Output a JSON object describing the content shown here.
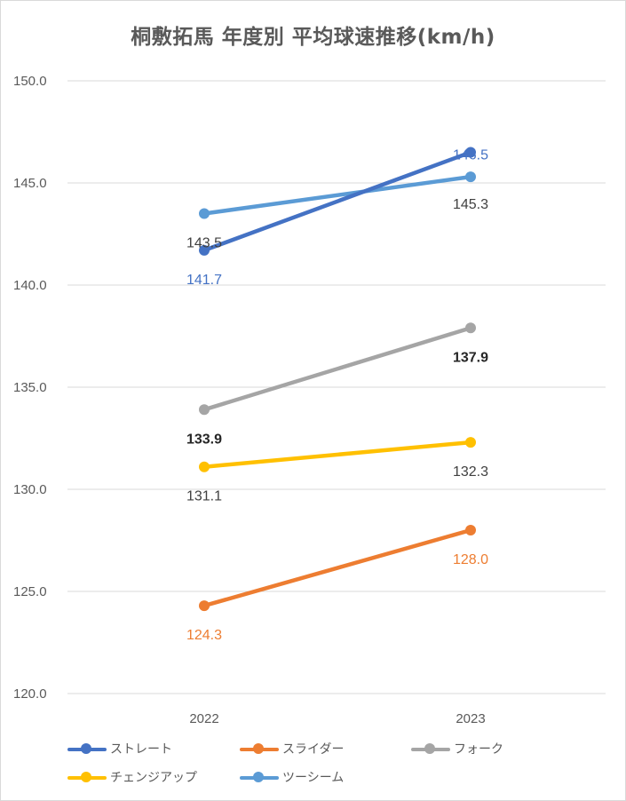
{
  "chart_data": {
    "type": "line",
    "title": "桐敷拓馬 年度別 平均球速推移(km/h)",
    "categories": [
      "2022",
      "2023"
    ],
    "ylim": [
      120,
      150
    ],
    "yticks": [
      "120.0",
      "125.0",
      "130.0",
      "135.0",
      "140.0",
      "145.0",
      "150.0"
    ],
    "grid": true,
    "legend_position": "bottom",
    "series": [
      {
        "name": "ストレート",
        "values": [
          141.7,
          146.5
        ],
        "labels": [
          "141.7",
          "146.5"
        ],
        "color": "#4472c4",
        "label_color": "#4472c4",
        "bold": false
      },
      {
        "name": "スライダー",
        "values": [
          124.3,
          128.0
        ],
        "labels": [
          "124.3",
          "128.0"
        ],
        "color": "#ed7d31",
        "label_color": "#ed7d31",
        "bold": false
      },
      {
        "name": "フォーク",
        "values": [
          133.9,
          137.9
        ],
        "labels": [
          "133.9",
          "137.9"
        ],
        "color": "#a5a5a5",
        "label_color": "#262626",
        "bold": true
      },
      {
        "name": "チェンジアップ",
        "values": [
          131.1,
          132.3
        ],
        "labels": [
          "131.1",
          "132.3"
        ],
        "color": "#ffc000",
        "label_color": "#404040",
        "bold": false
      },
      {
        "name": "ツーシーム",
        "values": [
          143.5,
          145.3
        ],
        "labels": [
          "143.5",
          "145.3"
        ],
        "color": "#5b9bd5",
        "label_color": "#404040",
        "bold": false
      }
    ]
  }
}
